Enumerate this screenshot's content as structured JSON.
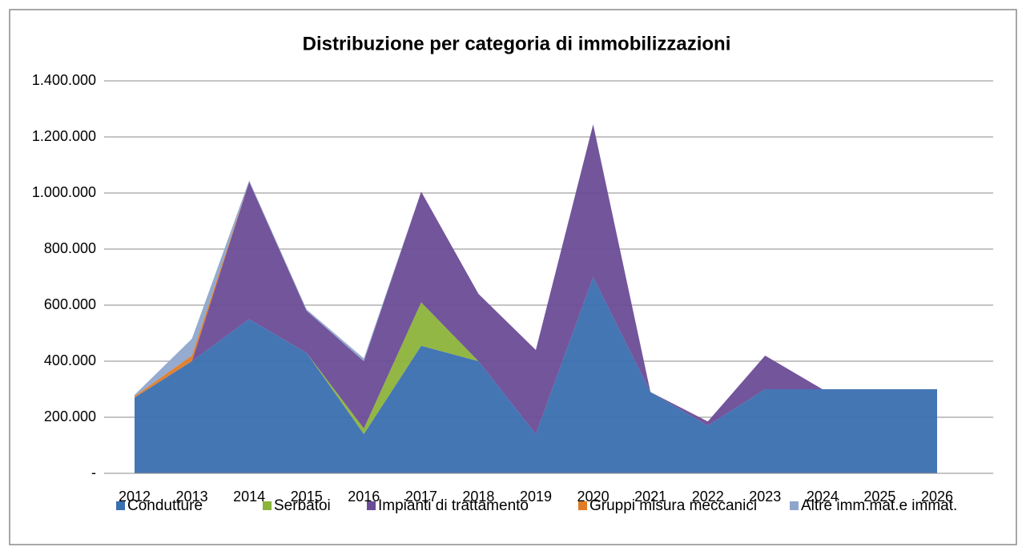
{
  "chart_data": {
    "type": "stacked_area",
    "title": "Distribuzione per categoria di immobilizzazioni",
    "categories": [
      "2012",
      "2013",
      "2014",
      "2015",
      "2016",
      "2017",
      "2018",
      "2019",
      "2020",
      "2021",
      "2022",
      "2023",
      "2024",
      "2025",
      "2026"
    ],
    "series": [
      {
        "name": "Condutture",
        "color": "#3a6fb0",
        "values": [
          270000,
          400000,
          550000,
          430000,
          140000,
          455000,
          400000,
          140000,
          700000,
          290000,
          170000,
          300000,
          300000,
          300000,
          300000
        ]
      },
      {
        "name": "Serbatoi",
        "color": "#8cb33a",
        "values": [
          0,
          0,
          0,
          0,
          20000,
          155000,
          0,
          0,
          0,
          0,
          0,
          0,
          0,
          0,
          0
        ]
      },
      {
        "name": "Impianti di trattamento",
        "color": "#6b4c96",
        "values": [
          0,
          0,
          490000,
          150000,
          240000,
          395000,
          240000,
          300000,
          545000,
          0,
          15000,
          120000,
          0,
          0,
          0
        ]
      },
      {
        "name": "Gruppi misura meccanici",
        "color": "#e07b26",
        "values": [
          5000,
          20000,
          0,
          0,
          0,
          0,
          0,
          0,
          0,
          0,
          0,
          0,
          0,
          0,
          0
        ]
      },
      {
        "name": "Altre imm.mat.e immat.",
        "color": "#8fa6cc",
        "values": [
          5000,
          60000,
          5000,
          5000,
          10000,
          0,
          0,
          0,
          0,
          0,
          0,
          0,
          0,
          0,
          0
        ]
      }
    ],
    "ylim": [
      0,
      1400000
    ],
    "yticks": [
      {
        "value": 0,
        "label": "-"
      },
      {
        "value": 200000,
        "label": "200.000"
      },
      {
        "value": 400000,
        "label": "400.000"
      },
      {
        "value": 600000,
        "label": "600.000"
      },
      {
        "value": 800000,
        "label": "800.000"
      },
      {
        "value": 1000000,
        "label": "1.000.000"
      },
      {
        "value": 1200000,
        "label": "1.200.000"
      },
      {
        "value": 1400000,
        "label": "1.400.000"
      }
    ],
    "grid": true,
    "legend": "bottom"
  }
}
